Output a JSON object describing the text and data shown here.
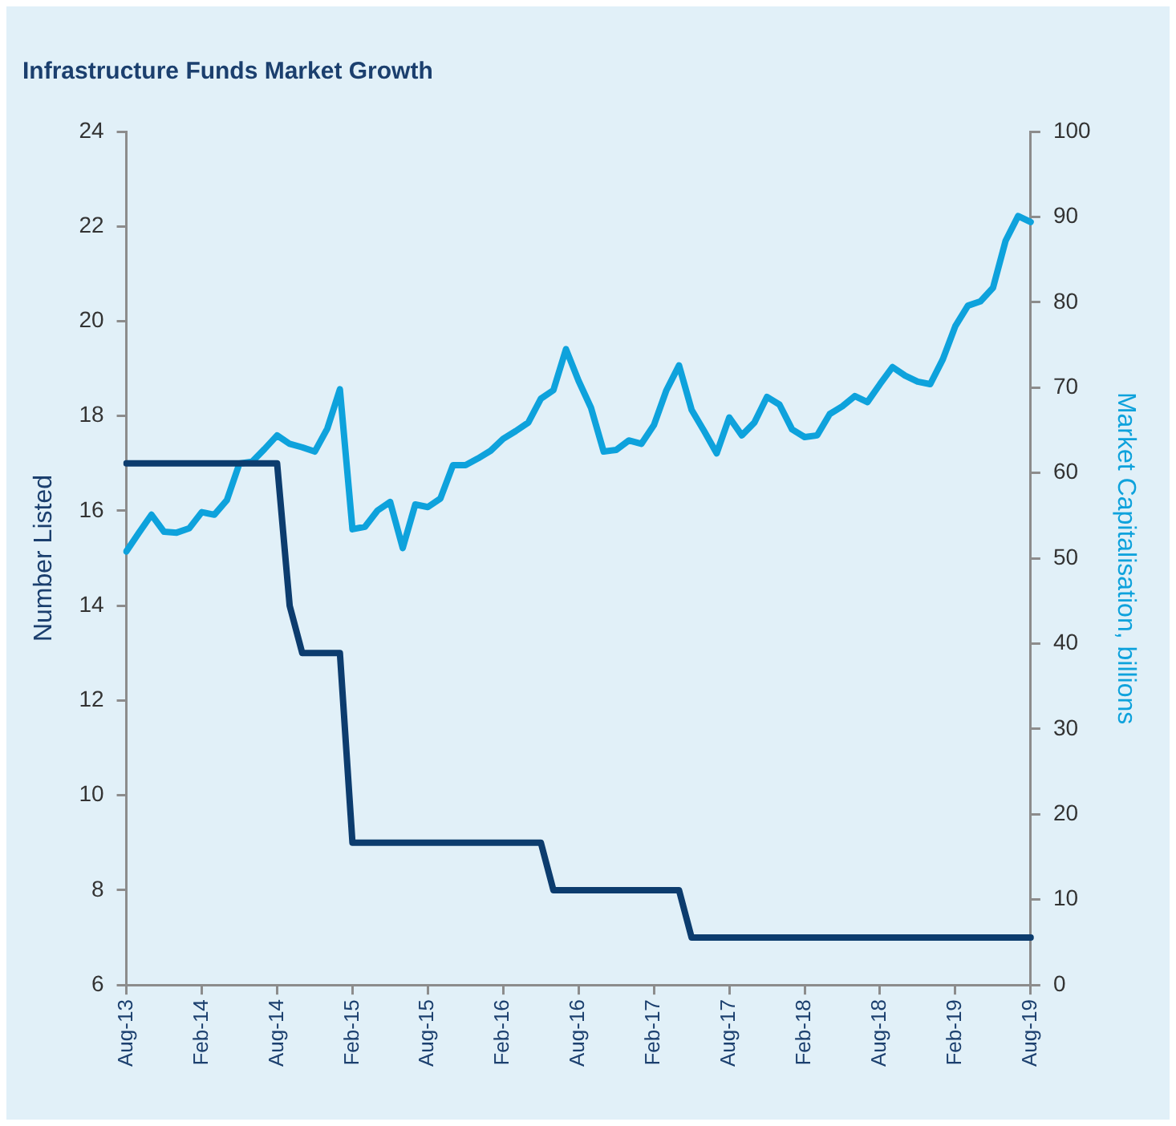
{
  "chart_data": {
    "type": "line",
    "title": "Infrastructure Funds Market Growth",
    "ylabel": "Number Listed",
    "y2label": "Market Capitalisation, billions",
    "categories": [
      "Aug-13",
      null,
      null,
      null,
      null,
      null,
      "Feb-14",
      null,
      null,
      null,
      null,
      null,
      "Aug-14",
      null,
      null,
      null,
      null,
      null,
      "Feb-15",
      null,
      null,
      null,
      null,
      null,
      "Aug-15",
      null,
      null,
      null,
      null,
      null,
      "Feb-16",
      null,
      null,
      null,
      null,
      null,
      "Aug-16",
      null,
      null,
      null,
      null,
      null,
      "Feb-17",
      null,
      null,
      null,
      null,
      null,
      "Aug-17",
      null,
      null,
      null,
      null,
      null,
      "Feb-18",
      null,
      null,
      null,
      null,
      null,
      "Aug-18",
      null,
      null,
      null,
      null,
      null,
      "Feb-19",
      null,
      null,
      null,
      null,
      null,
      "Aug-19"
    ],
    "series": [
      {
        "color": "#0c3c6e",
        "values": [
          17,
          17,
          17,
          17,
          17,
          17,
          17,
          17,
          17,
          17,
          17,
          17,
          17,
          14,
          13,
          13,
          13,
          13,
          9,
          9,
          9,
          9,
          9,
          9,
          9,
          9,
          9,
          9,
          9,
          9,
          9,
          9,
          9,
          9,
          8,
          8,
          8,
          8,
          8,
          8,
          8,
          8,
          8,
          8,
          8,
          7,
          7,
          7,
          7,
          7,
          7,
          7,
          7,
          7,
          7,
          7,
          7,
          7,
          7,
          7,
          7,
          7,
          7,
          7,
          7,
          7,
          7,
          7,
          7,
          7,
          7,
          7,
          7
        ]
      },
      {
        "color": "#0ea2dc",
        "axis": "y2",
        "values": [
          50.8,
          53.0,
          55.1,
          53.1,
          53.0,
          53.5,
          55.4,
          55.1,
          56.8,
          61.1,
          61.3,
          62.8,
          64.4,
          63.4,
          63.0,
          62.5,
          65.2,
          69.8,
          53.4,
          53.7,
          55.6,
          56.6,
          51.2,
          56.3,
          56.0,
          57.0,
          60.9,
          60.9,
          61.7,
          62.6,
          64.0,
          64.9,
          65.9,
          68.7,
          69.7,
          74.5,
          70.8,
          67.6,
          62.5,
          62.7,
          63.8,
          63.4,
          65.6,
          69.7,
          72.6,
          67.4,
          64.9,
          62.3,
          66.5,
          64.4,
          65.9,
          68.9,
          68.0,
          65.1,
          64.2,
          64.4,
          66.9,
          67.8,
          69.0,
          68.3,
          70.4,
          72.4,
          71.4,
          70.7,
          70.4,
          73.3,
          77.2,
          79.6,
          80.1,
          81.7,
          87.2,
          90.1,
          89.4
        ]
      }
    ],
    "ylim": [
      6,
      24
    ],
    "yticks": [
      6,
      8,
      10,
      12,
      14,
      16,
      18,
      20,
      22,
      24
    ],
    "y2lim": [
      0,
      100
    ],
    "y2ticks": [
      0,
      10,
      20,
      30,
      40,
      50,
      60,
      70,
      80,
      90,
      100
    ]
  }
}
